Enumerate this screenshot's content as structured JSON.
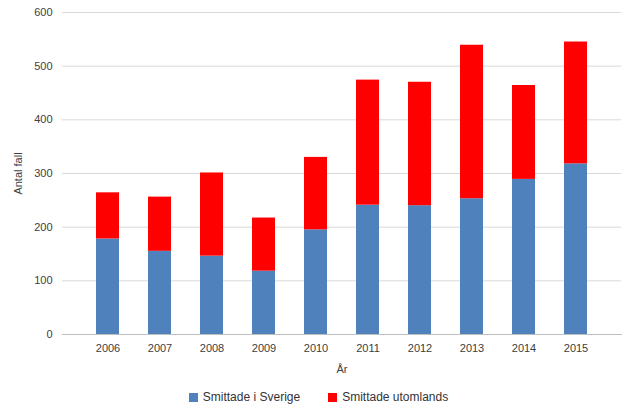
{
  "chart_data": {
    "type": "bar",
    "stacked": true,
    "x_label": "År",
    "y_label": "Antal fall",
    "categories": [
      "2006",
      "2007",
      "2008",
      "2009",
      "2010",
      "2011",
      "2012",
      "2013",
      "2014",
      "2015"
    ],
    "series": [
      {
        "name": "Smittade i Sverige",
        "color": "#4f81bd",
        "values": [
          178,
          155,
          146,
          118,
          195,
          241,
          240,
          253,
          289,
          318
        ]
      },
      {
        "name": "Smittade utomlands",
        "color": "#ff0000",
        "values": [
          86,
          101,
          155,
          99,
          135,
          233,
          230,
          286,
          175,
          227
        ]
      }
    ],
    "ylim": [
      0,
      600
    ],
    "yticks": [
      0,
      100,
      200,
      300,
      400,
      500,
      600
    ],
    "grid": true,
    "legend": "bottom"
  }
}
